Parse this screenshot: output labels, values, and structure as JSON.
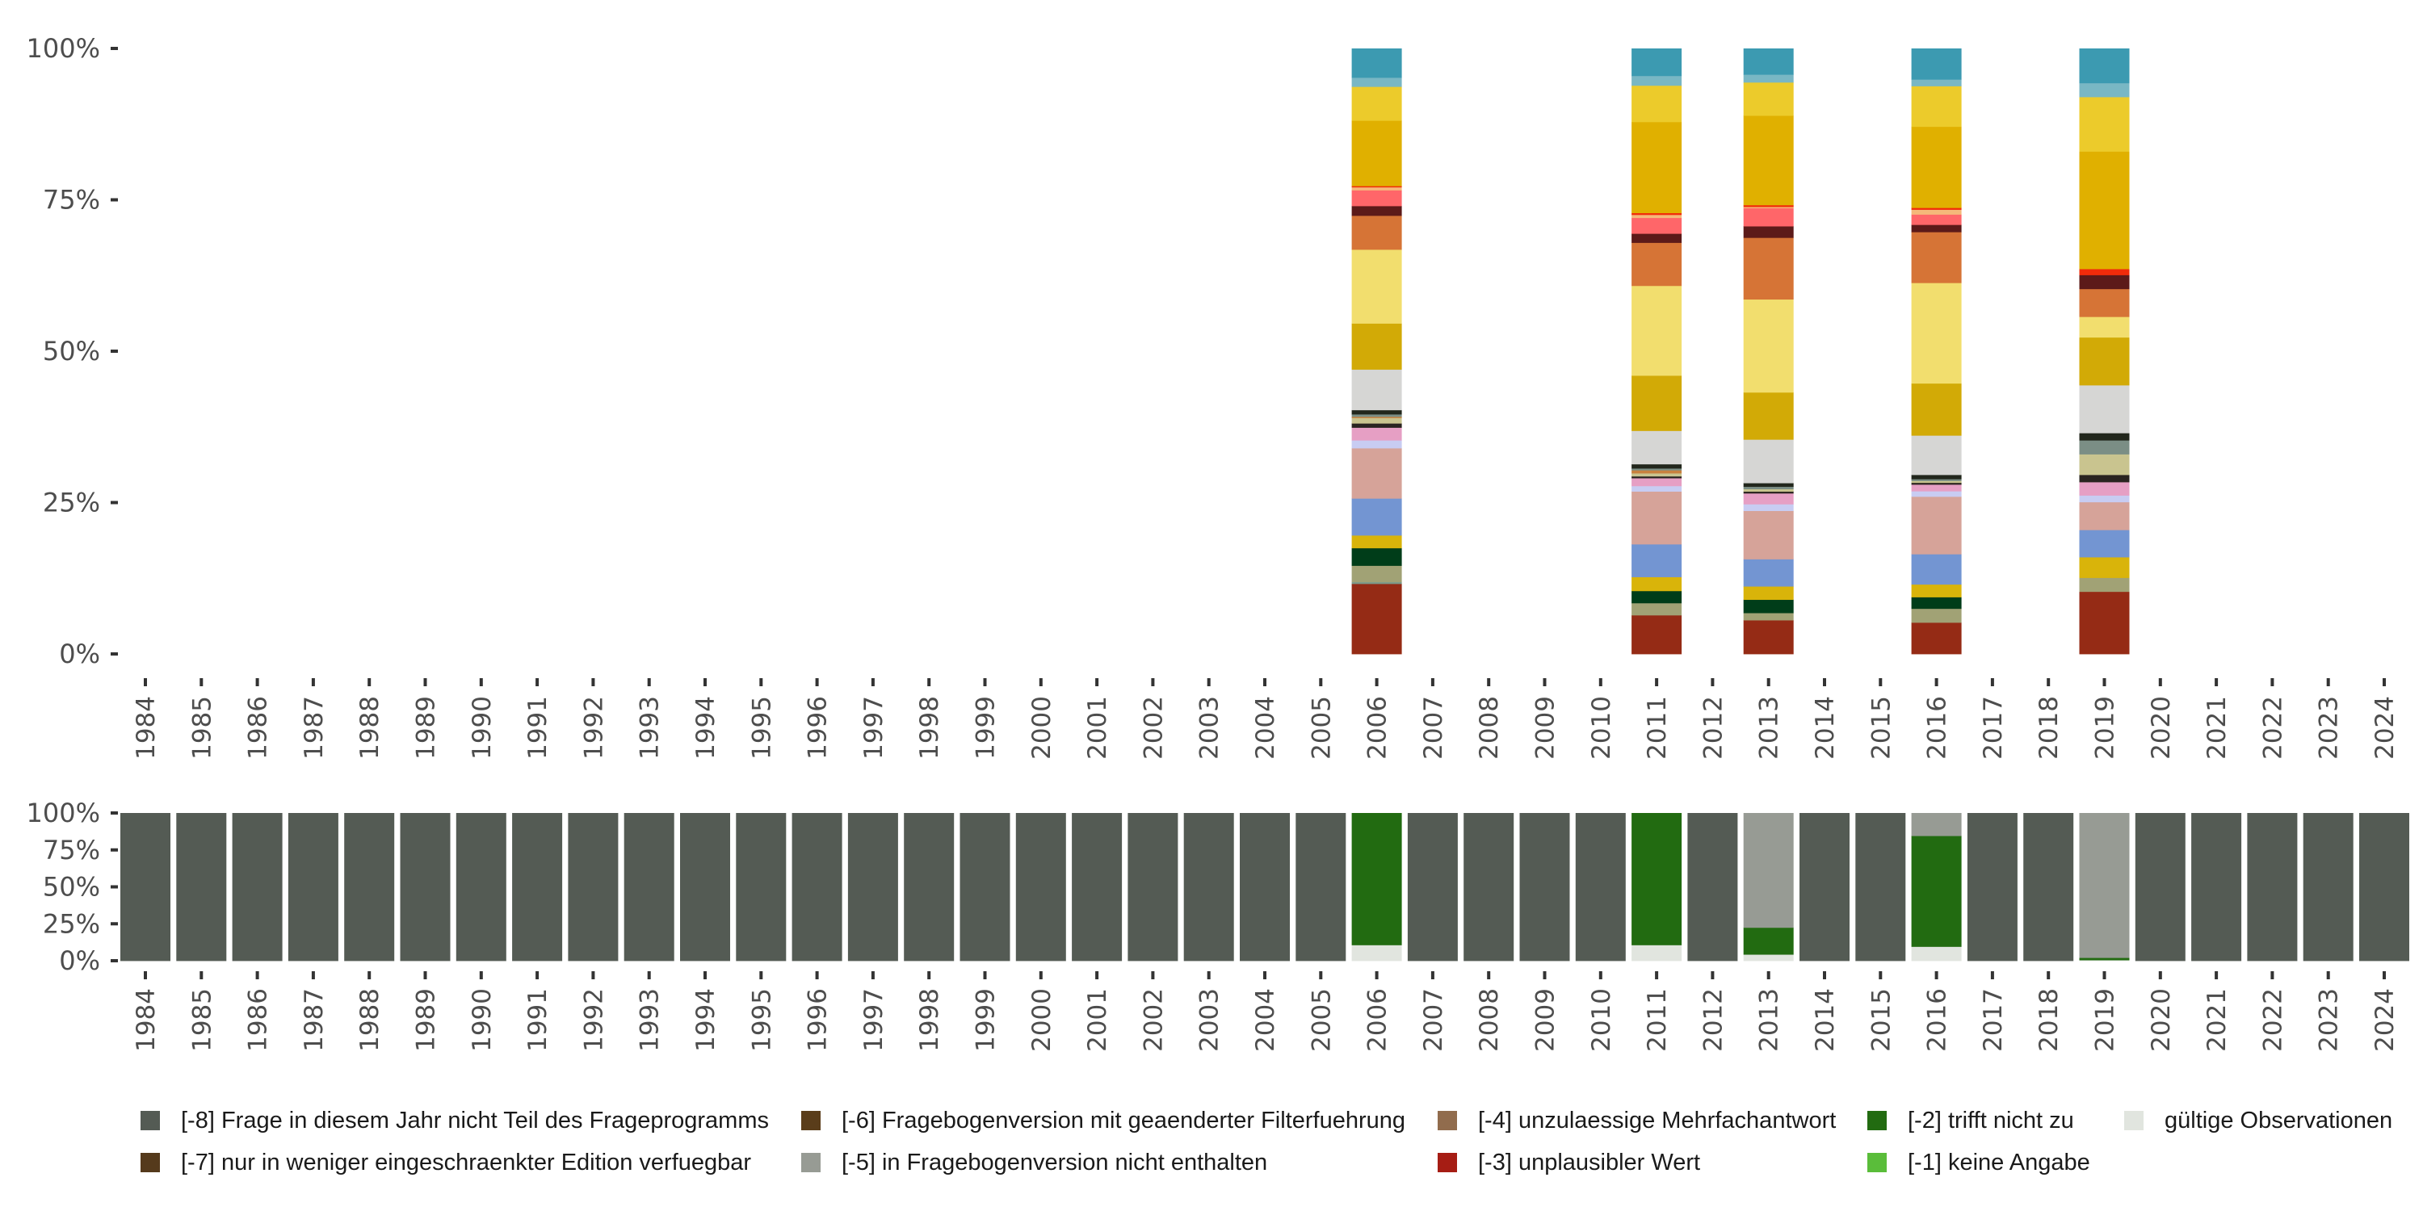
{
  "chart_data": [
    {
      "id": "detail",
      "type": "bar",
      "stacked": true,
      "title": "",
      "xlabel": "",
      "ylabel": "",
      "ylim": [
        0,
        1
      ],
      "yticks": [
        "0%",
        "25%",
        "50%",
        "75%",
        "100%"
      ],
      "categories": [
        "1984",
        "1985",
        "1986",
        "1987",
        "1988",
        "1989",
        "1990",
        "1991",
        "1992",
        "1993",
        "1994",
        "1995",
        "1996",
        "1997",
        "1998",
        "1999",
        "2000",
        "2001",
        "2002",
        "2003",
        "2004",
        "2005",
        "2006",
        "2007",
        "2008",
        "2009",
        "2010",
        "2011",
        "2012",
        "2013",
        "2014",
        "2015",
        "2016",
        "2017",
        "2018",
        "2019",
        "2020",
        "2021",
        "2022",
        "2023",
        "2024"
      ],
      "note": "Stacks listed bottom to top; values are shares of the bar (fractions). Only years with data are listed.",
      "stacks": {
        "2006": [
          {
            "color": "#952b15",
            "value": 0.116
          },
          {
            "color": "#7b9a8a",
            "value": 0.003
          },
          {
            "color": "#a1a275",
            "value": 0.027
          },
          {
            "color": "#003d19",
            "value": 0.029
          },
          {
            "color": "#d9b40a",
            "value": 0.021
          },
          {
            "color": "#7395d2",
            "value": 0.061
          },
          {
            "color": "#d6a399",
            "value": 0.083
          },
          {
            "color": "#c8ccf2",
            "value": 0.013
          },
          {
            "color": "#e69fc4",
            "value": 0.021
          },
          {
            "color": "#2a2420",
            "value": 0.007
          },
          {
            "color": "#c9c48f",
            "value": 0.009
          },
          {
            "color": "#c8813f",
            "value": 0.002
          },
          {
            "color": "#7b8e85",
            "value": 0.004
          },
          {
            "color": "#22271c",
            "value": 0.007
          },
          {
            "color": "#d6d6d4",
            "value": 0.067
          },
          {
            "color": "#d2aa06",
            "value": 0.076
          },
          {
            "color": "#f2de6e",
            "value": 0.122
          },
          {
            "color": "#d67436",
            "value": 0.056
          },
          {
            "color": "#5c1a19",
            "value": 0.016
          },
          {
            "color": "#ff6669",
            "value": 0.026
          },
          {
            "color": "#f5b87a",
            "value": 0.005
          },
          {
            "color": "#f22b0a",
            "value": 0.002
          },
          {
            "color": "#e0b000",
            "value": 0.108
          },
          {
            "color": "#eccb2b",
            "value": 0.056
          },
          {
            "color": "#79b7c4",
            "value": 0.015
          },
          {
            "color": "#3c9ab1",
            "value": 0.048
          }
        ],
        "2011": [
          {
            "color": "#952b15",
            "value": 0.064
          },
          {
            "color": "#a1a275",
            "value": 0.02
          },
          {
            "color": "#003d19",
            "value": 0.02
          },
          {
            "color": "#d9b40a",
            "value": 0.023
          },
          {
            "color": "#7395d2",
            "value": 0.054
          },
          {
            "color": "#d6a399",
            "value": 0.087
          },
          {
            "color": "#c8ccf2",
            "value": 0.009
          },
          {
            "color": "#e69fc4",
            "value": 0.013
          },
          {
            "color": "#2a2420",
            "value": 0.003
          },
          {
            "color": "#c9c48f",
            "value": 0.005
          },
          {
            "color": "#c8813f",
            "value": 0.005
          },
          {
            "color": "#7b8e85",
            "value": 0.003
          },
          {
            "color": "#22271c",
            "value": 0.007
          },
          {
            "color": "#d6d6d4",
            "value": 0.055
          },
          {
            "color": "#d2aa06",
            "value": 0.091
          },
          {
            "color": "#f2de6e",
            "value": 0.148
          },
          {
            "color": "#d67436",
            "value": 0.071
          },
          {
            "color": "#5c1a19",
            "value": 0.015
          },
          {
            "color": "#ff6669",
            "value": 0.026
          },
          {
            "color": "#f5b87a",
            "value": 0.005
          },
          {
            "color": "#f22b0a",
            "value": 0.003
          },
          {
            "color": "#e0b000",
            "value": 0.15
          },
          {
            "color": "#eccb2b",
            "value": 0.06
          },
          {
            "color": "#79b7c4",
            "value": 0.016
          },
          {
            "color": "#3c9ab1",
            "value": 0.045
          }
        ],
        "2013": [
          {
            "color": "#952b15",
            "value": 0.056
          },
          {
            "color": "#a1a275",
            "value": 0.012
          },
          {
            "color": "#003d19",
            "value": 0.022
          },
          {
            "color": "#d9b40a",
            "value": 0.022
          },
          {
            "color": "#7395d2",
            "value": 0.045
          },
          {
            "color": "#d6a399",
            "value": 0.08
          },
          {
            "color": "#c8ccf2",
            "value": 0.011
          },
          {
            "color": "#e69fc4",
            "value": 0.018
          },
          {
            "color": "#2a2420",
            "value": 0.003
          },
          {
            "color": "#c9c48f",
            "value": 0.004
          },
          {
            "color": "#7b8e85",
            "value": 0.004
          },
          {
            "color": "#22271c",
            "value": 0.006
          },
          {
            "color": "#d6d6d4",
            "value": 0.072
          },
          {
            "color": "#d2aa06",
            "value": 0.078
          },
          {
            "color": "#f2de6e",
            "value": 0.154
          },
          {
            "color": "#d67436",
            "value": 0.102
          },
          {
            "color": "#5c1a19",
            "value": 0.019
          },
          {
            "color": "#ff6669",
            "value": 0.03
          },
          {
            "color": "#f5b87a",
            "value": 0.002
          },
          {
            "color": "#f22b0a",
            "value": 0.003
          },
          {
            "color": "#e0b000",
            "value": 0.148
          },
          {
            "color": "#eccb2b",
            "value": 0.055
          },
          {
            "color": "#79b7c4",
            "value": 0.013
          },
          {
            "color": "#3c9ab1",
            "value": 0.043
          }
        ],
        "2016": [
          {
            "color": "#952b15",
            "value": 0.052
          },
          {
            "color": "#a1a275",
            "value": 0.023
          },
          {
            "color": "#003d19",
            "value": 0.019
          },
          {
            "color": "#d9b40a",
            "value": 0.021
          },
          {
            "color": "#7395d2",
            "value": 0.05
          },
          {
            "color": "#d6a399",
            "value": 0.095
          },
          {
            "color": "#c8ccf2",
            "value": 0.009
          },
          {
            "color": "#e69fc4",
            "value": 0.011
          },
          {
            "color": "#2a2420",
            "value": 0.003
          },
          {
            "color": "#c9c48f",
            "value": 0.003
          },
          {
            "color": "#7b8e85",
            "value": 0.003
          },
          {
            "color": "#22271c",
            "value": 0.007
          },
          {
            "color": "#d6d6d4",
            "value": 0.065
          },
          {
            "color": "#d2aa06",
            "value": 0.086
          },
          {
            "color": "#f2de6e",
            "value": 0.166
          },
          {
            "color": "#d67436",
            "value": 0.084
          },
          {
            "color": "#5c1a19",
            "value": 0.012
          },
          {
            "color": "#ff6669",
            "value": 0.017
          },
          {
            "color": "#f5b87a",
            "value": 0.008
          },
          {
            "color": "#f22b0a",
            "value": 0.003
          },
          {
            "color": "#e0b000",
            "value": 0.134
          },
          {
            "color": "#eccb2b",
            "value": 0.067
          },
          {
            "color": "#79b7c4",
            "value": 0.011
          },
          {
            "color": "#3c9ab1",
            "value": 0.051
          }
        ],
        "2019": [
          {
            "color": "#952b15",
            "value": 0.103
          },
          {
            "color": "#a1a275",
            "value": 0.023
          },
          {
            "color": "#d9b40a",
            "value": 0.034
          },
          {
            "color": "#7395d2",
            "value": 0.045
          },
          {
            "color": "#d6a399",
            "value": 0.046
          },
          {
            "color": "#c8ccf2",
            "value": 0.011
          },
          {
            "color": "#e69fc4",
            "value": 0.022
          },
          {
            "color": "#2a2420",
            "value": 0.012
          },
          {
            "color": "#c9c48f",
            "value": 0.034
          },
          {
            "color": "#7b8e85",
            "value": 0.023
          },
          {
            "color": "#22271c",
            "value": 0.012
          },
          {
            "color": "#d6d6d4",
            "value": 0.079
          },
          {
            "color": "#d2aa06",
            "value": 0.079
          },
          {
            "color": "#f2de6e",
            "value": 0.034
          },
          {
            "color": "#d67436",
            "value": 0.046
          },
          {
            "color": "#5c1a19",
            "value": 0.023
          },
          {
            "color": "#f22b0a",
            "value": 0.01
          },
          {
            "color": "#e0b000",
            "value": 0.194
          },
          {
            "color": "#eccb2b",
            "value": 0.09
          },
          {
            "color": "#79b7c4",
            "value": 0.023
          },
          {
            "color": "#3c9ab1",
            "value": 0.057
          }
        ]
      }
    },
    {
      "id": "overview",
      "type": "bar",
      "stacked": true,
      "title": "",
      "xlabel": "",
      "ylabel": "",
      "ylim": [
        0,
        1
      ],
      "yticks": [
        "0%",
        "25%",
        "50%",
        "75%",
        "100%"
      ],
      "categories": [
        "1984",
        "1985",
        "1986",
        "1987",
        "1988",
        "1989",
        "1990",
        "1991",
        "1992",
        "1993",
        "1994",
        "1995",
        "1996",
        "1997",
        "1998",
        "1999",
        "2000",
        "2001",
        "2002",
        "2003",
        "2004",
        "2005",
        "2006",
        "2007",
        "2008",
        "2009",
        "2010",
        "2011",
        "2012",
        "2013",
        "2014",
        "2015",
        "2016",
        "2017",
        "2018",
        "2019",
        "2020",
        "2021",
        "2022",
        "2023",
        "2024"
      ],
      "series": [
        {
          "name": "gültige Observationen",
          "color": "#e1e5df",
          "values": [
            0,
            0,
            0,
            0,
            0,
            0,
            0,
            0,
            0,
            0,
            0,
            0,
            0,
            0,
            0,
            0,
            0,
            0,
            0,
            0,
            0,
            0,
            0.107,
            0,
            0,
            0,
            0,
            0.107,
            0,
            0.043,
            0,
            0,
            0.096,
            0,
            0,
            0.005,
            0,
            0,
            0,
            0,
            0
          ]
        },
        {
          "name": "[-2] trifft nicht zu",
          "color": "#226b11",
          "values": [
            0,
            0,
            0,
            0,
            0,
            0,
            0,
            0,
            0,
            0,
            0,
            0,
            0,
            0,
            0,
            0,
            0,
            0,
            0,
            0,
            0,
            0,
            0.893,
            0,
            0,
            0,
            0,
            0.893,
            0,
            0.182,
            0,
            0,
            0.75,
            0,
            0,
            0.016,
            0,
            0,
            0,
            0,
            0
          ]
        },
        {
          "name": "[-5] in Fragebogenversion nicht enthalten",
          "color": "#979b94",
          "values": [
            0,
            0,
            0,
            0,
            0,
            0,
            0,
            0,
            0,
            0,
            0,
            0,
            0,
            0,
            0,
            0,
            0,
            0,
            0,
            0,
            0,
            0,
            0,
            0,
            0,
            0,
            0,
            0,
            0,
            0.775,
            0,
            0,
            0.154,
            0,
            0,
            0.979,
            0,
            0,
            0,
            0,
            0
          ]
        },
        {
          "name": "[-8] Frage in diesem Jahr nicht Teil des Frageprogramms",
          "color": "#545b54",
          "values": [
            1,
            1,
            1,
            1,
            1,
            1,
            1,
            1,
            1,
            1,
            1,
            1,
            1,
            1,
            1,
            1,
            1,
            1,
            1,
            1,
            1,
            1,
            0,
            1,
            1,
            1,
            1,
            0,
            1,
            0,
            1,
            1,
            0,
            1,
            1,
            0,
            1,
            1,
            1,
            1,
            1
          ]
        }
      ]
    }
  ],
  "legend": [
    {
      "label": "[-8] Frage in diesem Jahr nicht Teil des Frageprogramms",
      "color": "#545b54"
    },
    {
      "label": "[-7] nur in weniger eingeschraenkter Edition verfuegbar",
      "color": "#553a1c"
    },
    {
      "label": "[-6] Fragebogenversion mit geaenderter Filterfuehrung",
      "color": "#5a3d1a"
    },
    {
      "label": "[-5] in Fragebogenversion nicht enthalten",
      "color": "#979b94"
    },
    {
      "label": "[-4] unzulaessige Mehrfachantwort",
      "color": "#916c4d"
    },
    {
      "label": "[-3] unplausibler Wert",
      "color": "#a61d14"
    },
    {
      "label": "[-2] trifft nicht zu",
      "color": "#226b11"
    },
    {
      "label": "[-1] keine Angabe",
      "color": "#5abd3a"
    },
    {
      "label": "gültige Observationen",
      "color": "#e1e5df"
    }
  ]
}
